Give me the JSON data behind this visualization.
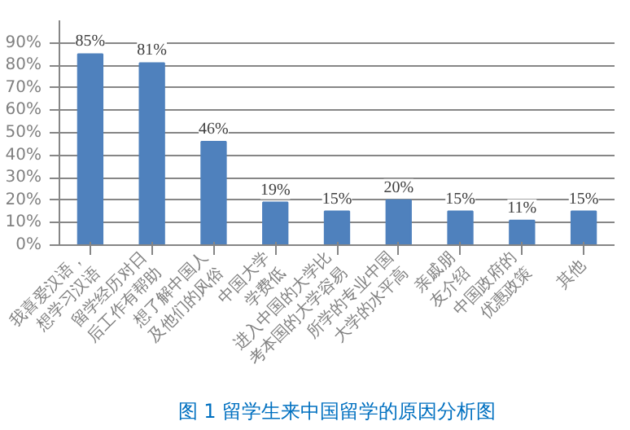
{
  "chart_data": {
    "type": "bar",
    "title": "图 1 留学生来中国留学的原因分析图",
    "categories": [
      "我喜爱汉语，想学习汉语",
      "留学经历对日后工作有帮助",
      "想了解中国人及他们的风俗",
      "中国大学学费低",
      "进入中国的大学比考本国的大学容易",
      "所学的专业中国大学的水平高",
      "亲戚朋友介绍",
      "中国政府的优惠政策",
      "其他"
    ],
    "values": [
      85,
      81,
      46,
      19,
      15,
      20,
      15,
      11,
      15
    ],
    "value_labels": [
      "85%",
      "81%",
      "46%",
      "19%",
      "15%",
      "20%",
      "15%",
      "11%",
      "15%"
    ],
    "color": "#4f81bd",
    "ylim": [
      0,
      100
    ],
    "yticks": [
      {
        "value": 0,
        "label": "0%"
      },
      {
        "value": 10,
        "label": "10%"
      },
      {
        "value": 20,
        "label": "20%"
      },
      {
        "value": 30,
        "label": "30%"
      },
      {
        "value": 40,
        "label": "40%"
      },
      {
        "value": 50,
        "label": "50%"
      },
      {
        "value": 60,
        "label": "60%"
      },
      {
        "value": 70,
        "label": "70%"
      },
      {
        "value": 80,
        "label": "80%"
      },
      {
        "value": 90,
        "label": "90%"
      }
    ],
    "grid": "y"
  }
}
